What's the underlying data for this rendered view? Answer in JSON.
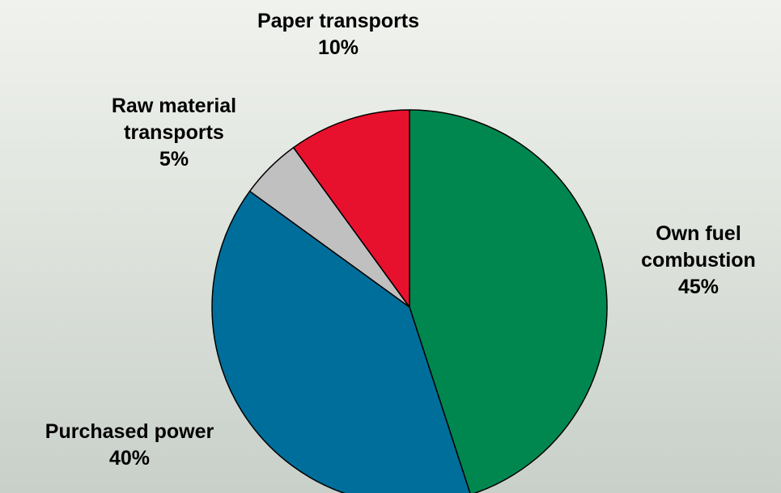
{
  "chart_data": {
    "type": "pie",
    "start_angle_deg": 0,
    "direction": "clockwise",
    "slices": [
      {
        "key": "own-fuel",
        "lines": [
          "Own fuel",
          "combustion"
        ],
        "value_label": "45%",
        "value": 45,
        "color": "#00874f"
      },
      {
        "key": "purchased-power",
        "lines": [
          "Purchased power"
        ],
        "value_label": "40%",
        "value": 40,
        "color": "#006e9b"
      },
      {
        "key": "raw-material",
        "lines": [
          "Raw material",
          "transports"
        ],
        "value_label": "5%",
        "value": 5,
        "color": "#c0c0c0"
      },
      {
        "key": "paper-transports",
        "lines": [
          "Paper transports"
        ],
        "value_label": "10%",
        "value": 10,
        "color": "#e8112d"
      }
    ]
  }
}
